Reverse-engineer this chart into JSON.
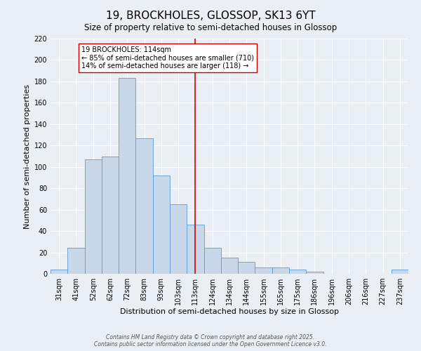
{
  "title": "19, BROCKHOLES, GLOSSOP, SK13 6YT",
  "subtitle": "Size of property relative to semi-detached houses in Glossop",
  "xlabel": "Distribution of semi-detached houses by size in Glossop",
  "ylabel": "Number of semi-detached properties",
  "categories": [
    "31sqm",
    "41sqm",
    "52sqm",
    "62sqm",
    "72sqm",
    "83sqm",
    "93sqm",
    "103sqm",
    "113sqm",
    "124sqm",
    "134sqm",
    "144sqm",
    "155sqm",
    "165sqm",
    "175sqm",
    "186sqm",
    "196sqm",
    "206sqm",
    "216sqm",
    "227sqm",
    "237sqm"
  ],
  "values": [
    4,
    24,
    107,
    110,
    183,
    127,
    92,
    65,
    46,
    24,
    15,
    11,
    6,
    6,
    4,
    2,
    0,
    0,
    0,
    0,
    4
  ],
  "bar_color_face": "#c8d8e8",
  "bar_color_edge": "#5b9bd5",
  "vline_x_idx": 8,
  "vline_color": "#cc0000",
  "annotation_line1": "19 BROCKHOLES: 114sqm",
  "annotation_line2": "← 85% of semi-detached houses are smaller (710)",
  "annotation_line3": "14% of semi-detached houses are larger (118) →",
  "annotation_box_color": "#cc0000",
  "annotation_box_facecolor": "white",
  "ylim": [
    0,
    220
  ],
  "yticks": [
    0,
    20,
    40,
    60,
    80,
    100,
    120,
    140,
    160,
    180,
    200,
    220
  ],
  "background_color": "#eaeff5",
  "grid_color": "white",
  "title_fontsize": 11,
  "subtitle_fontsize": 8.5,
  "label_fontsize": 8,
  "tick_fontsize": 7,
  "annotation_fontsize": 7,
  "footer_text": "Contains HM Land Registry data © Crown copyright and database right 2025.\nContains public sector information licensed under the Open Government Licence v3.0.",
  "footer_fontsize": 5.5
}
